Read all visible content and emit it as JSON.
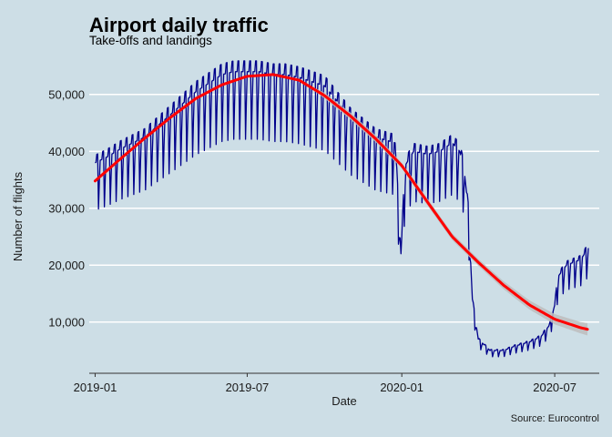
{
  "chart_data": {
    "type": "line",
    "title": "Airport daily traffic",
    "subtitle": "Take-offs and landings",
    "xlabel": "Date",
    "ylabel": "Number of flights",
    "caption": "Source: Eurocontrol",
    "x_range": [
      "2018-12-25",
      "2020-08-23"
    ],
    "ylim": [
      1000,
      57000
    ],
    "x_ticks": [
      "2019-01-01",
      "2019-07-01",
      "2020-01-01",
      "2020-07-01"
    ],
    "x_tick_labels": [
      "2019-01",
      "2019-07",
      "2020-01",
      "2020-07"
    ],
    "y_ticks": [
      10000,
      20000,
      30000,
      40000,
      50000
    ],
    "y_tick_labels": [
      "10,000",
      "20,000",
      "30,000",
      "40,000",
      "50,000"
    ],
    "grid": "horizontal major lines only",
    "legend": "none",
    "series": [
      {
        "type": "line",
        "color": "#00008b",
        "x": [
          "2019-01-01",
          "2019-01-15",
          "2019-02-01",
          "2019-03-01",
          "2019-04-01",
          "2019-05-01",
          "2019-06-01",
          "2019-06-15",
          "2019-07-01",
          "2019-07-15",
          "2019-08-01",
          "2019-08-15",
          "2019-09-01",
          "2019-10-01",
          "2019-11-01",
          "2019-12-01",
          "2019-12-24",
          "2019-12-31",
          "2020-01-05",
          "2020-01-15",
          "2020-02-01",
          "2020-02-15",
          "2020-03-01",
          "2020-03-10",
          "2020-03-15",
          "2020-03-20",
          "2020-03-25",
          "2020-04-01",
          "2020-04-15",
          "2020-05-01",
          "2020-05-15",
          "2020-06-01",
          "2020-06-15",
          "2020-06-25",
          "2020-07-01",
          "2020-07-05",
          "2020-07-15",
          "2020-08-01",
          "2020-08-10"
        ],
        "values": [
          38000,
          39000,
          40500,
          42500,
          46500,
          50500,
          53500,
          54000,
          54000,
          54000,
          53500,
          53500,
          53000,
          51500,
          46000,
          42500,
          41500,
          22000,
          37500,
          40000,
          39500,
          40000,
          41500,
          40000,
          37000,
          30000,
          14000,
          7000,
          5000,
          5000,
          5800,
          6500,
          7500,
          9500,
          13000,
          18000,
          20000,
          21000,
          23000
        ],
        "weekly_dip": 0.22
      },
      {
        "type": "smooth",
        "color": "#ff0000",
        "band_color": "#bdbdbd",
        "x": [
          "2019-01-01",
          "2019-02-01",
          "2019-03-01",
          "2019-04-01",
          "2019-05-01",
          "2019-06-01",
          "2019-07-01",
          "2019-08-01",
          "2019-09-01",
          "2019-10-01",
          "2019-11-01",
          "2019-12-01",
          "2020-01-01",
          "2020-02-01",
          "2020-03-01",
          "2020-04-01",
          "2020-05-01",
          "2020-06-01",
          "2020-07-01",
          "2020-08-01",
          "2020-08-10"
        ],
        "values": [
          34800,
          38800,
          42300,
          46000,
          49300,
          51700,
          53200,
          53500,
          52500,
          49800,
          46200,
          42200,
          37500,
          31000,
          25000,
          20500,
          16500,
          13000,
          10500,
          9000,
          8700
        ],
        "band_halfwidth": [
          0,
          0,
          0,
          0,
          0,
          0,
          0,
          0,
          0,
          500,
          600,
          600,
          500,
          600,
          600,
          600,
          700,
          800,
          900,
          1000,
          1100
        ]
      }
    ]
  }
}
